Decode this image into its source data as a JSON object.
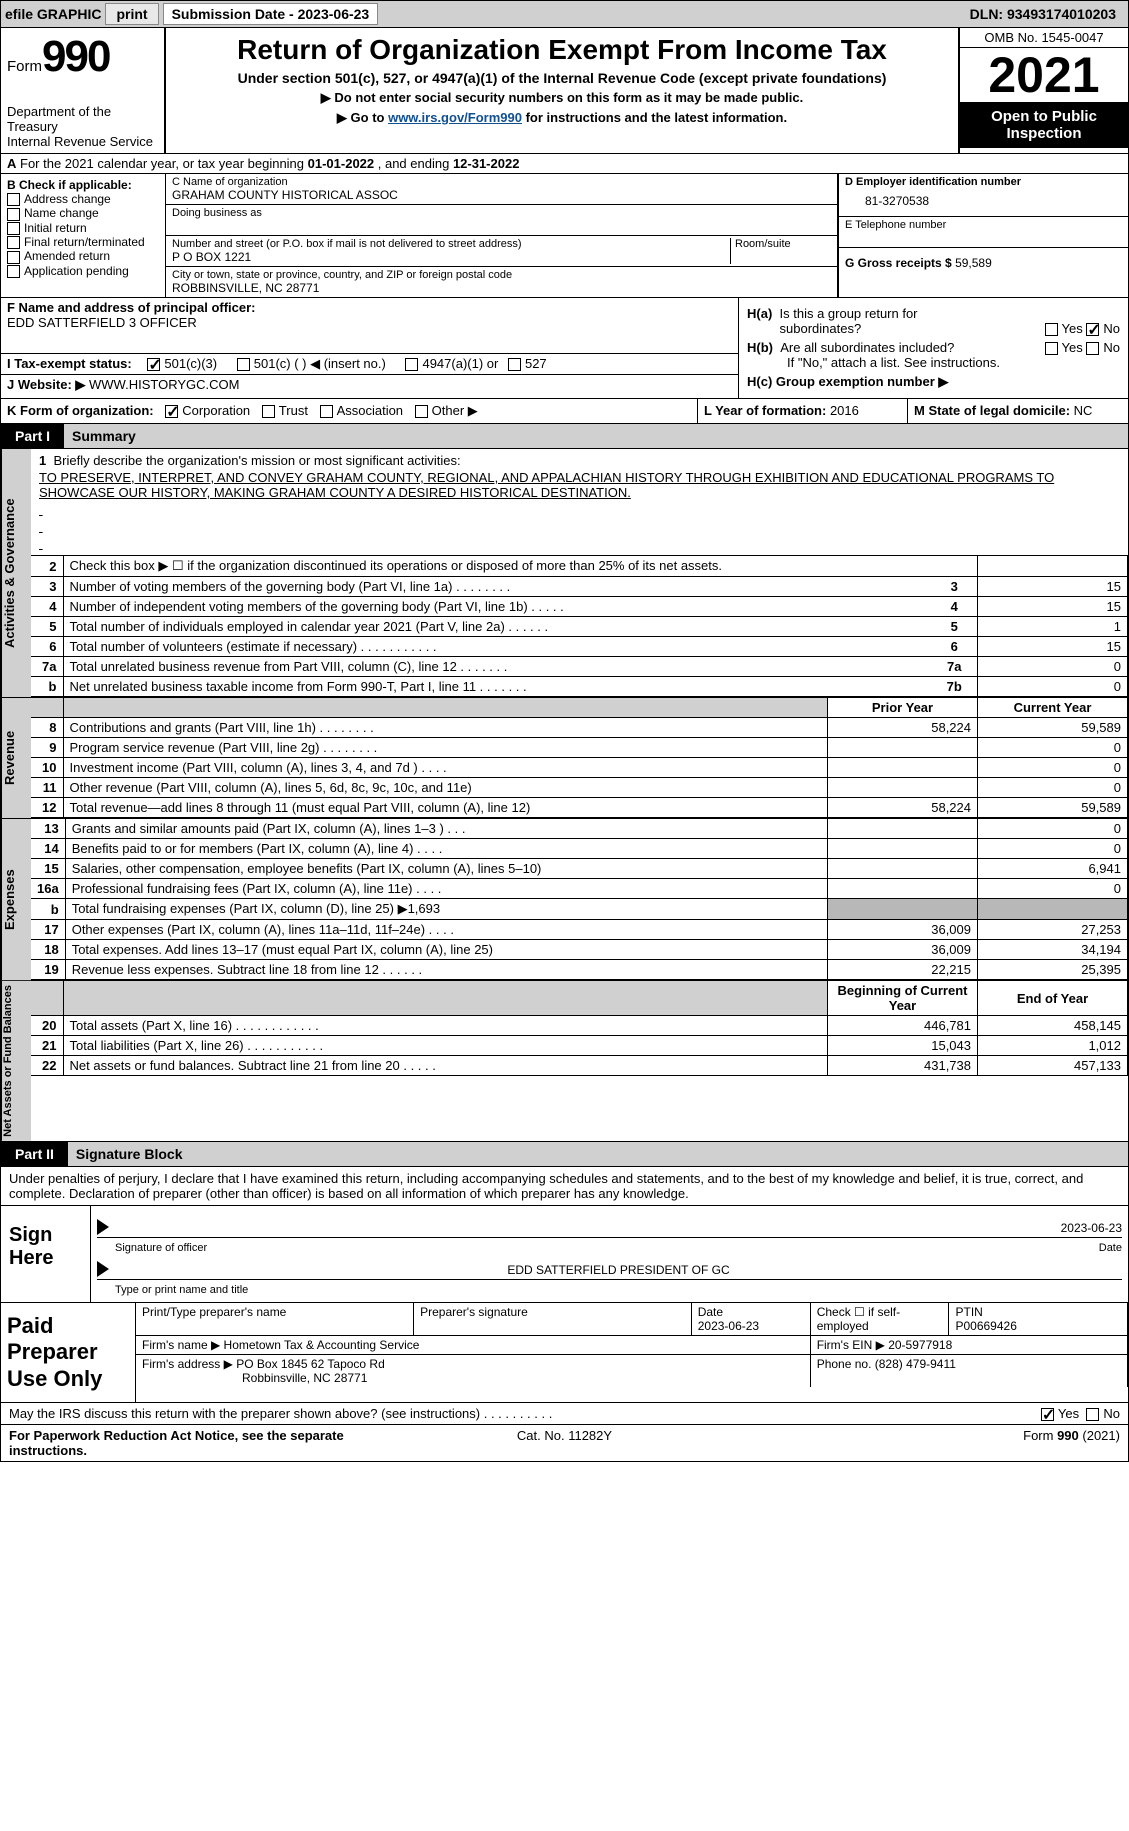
{
  "topbar": {
    "efile_label": "efile GRAPHIC",
    "print_btn": "print",
    "subdate_label": "Submission Date - ",
    "subdate_value": "2023-06-23",
    "dln_label": "DLN: ",
    "dln_value": "93493174010203"
  },
  "header": {
    "form_word": "Form",
    "form_num": "990",
    "dept": "Department of the Treasury",
    "irs": "Internal Revenue Service",
    "title": "Return of Organization Exempt From Income Tax",
    "sub": "Under section 501(c), 527, or 4947(a)(1) of the Internal Revenue Code (except private foundations)",
    "line1_pre": "▶ Do not enter social security numbers on this form as it may be made public.",
    "line2_pre": "▶ Go to ",
    "line2_link": "www.irs.gov/Form990",
    "line2_post": " for instructions and the latest information.",
    "omb": "OMB No. 1545-0047",
    "year": "2021",
    "open": "Open to Public Inspection"
  },
  "rowA": {
    "label_a": "A",
    "text1": " For the 2021 calendar year, or tax year beginning ",
    "begin": "01-01-2022",
    "text2": "   , and ending ",
    "end": "12-31-2022"
  },
  "colB": {
    "label": "B Check if applicable:",
    "items": [
      "Address change",
      "Name change",
      "Initial return",
      "Final return/terminated",
      "Amended return",
      "Application pending"
    ]
  },
  "colC": {
    "name_lbl": "C Name of organization",
    "name_val": "GRAHAM COUNTY HISTORICAL ASSOC",
    "dba_lbl": "Doing business as",
    "street_lbl": "Number and street (or P.O. box if mail is not delivered to street address)",
    "room_lbl": "Room/suite",
    "street_val": "P O BOX 1221",
    "city_lbl": "City or town, state or province, country, and ZIP or foreign postal code",
    "city_val": "ROBBINSVILLE, NC  28771"
  },
  "colD": {
    "ein_lbl": "D Employer identification number",
    "ein_val": "81-3270538",
    "tel_lbl": "E Telephone number",
    "gross_lbl": "G Gross receipts $ ",
    "gross_val": "59,589"
  },
  "secF": {
    "lbl": "F  Name and address of principal officer:",
    "val": "EDD SATTERFIELD 3 OFFICER"
  },
  "secH": {
    "ha_lbl": "H(a)  Is this a group return for subordinates?",
    "hb_lbl": "H(b)  Are all subordinates included?",
    "hb_note": "If \"No,\" attach a list. See instructions.",
    "hc_lbl": "H(c)  Group exemption number ▶",
    "yes": "Yes",
    "no": "No"
  },
  "secI": {
    "lbl": "I     Tax-exempt status:",
    "o1": "501(c)(3)",
    "o2": "501(c) (   ) ◀ (insert no.)",
    "o3": "4947(a)(1) or",
    "o4": "527"
  },
  "secJ": {
    "lbl": "J    Website: ▶ ",
    "val": "WWW.HISTORYGC.COM"
  },
  "rowK": {
    "lbl": "K Form of organization:",
    "corp": "Corporation",
    "trust": "Trust",
    "assoc": "Association",
    "other": "Other ▶",
    "l_lbl": "L Year of formation: ",
    "l_val": "2016",
    "m_lbl": "M State of legal domicile: ",
    "m_val": "NC"
  },
  "part1": {
    "tab": "Part I",
    "title": "Summary"
  },
  "mission": {
    "num": "1",
    "lbl": "Briefly describe the organization's mission or most significant activities:",
    "text": "TO PRESERVE, INTERPRET, AND CONVEY GRAHAM COUNTY, REGIONAL, AND APPALACHIAN HISTORY THROUGH EXHIBITION AND EDUCATIONAL PROGRAMS TO SHOWCASE OUR HISTORY, MAKING GRAHAM COUNTY A DESIRED HISTORICAL DESTINATION."
  },
  "vtabs": {
    "gov": "Activities & Governance",
    "rev": "Revenue",
    "exp": "Expenses",
    "net": "Net Assets or Fund Balances"
  },
  "gov_rows": [
    {
      "n": "2",
      "t": "Check this box ▶ ☐ if the organization discontinued its operations or disposed of more than 25% of its net assets.",
      "box": "",
      "v": ""
    },
    {
      "n": "3",
      "t": "Number of voting members of the governing body (Part VI, line 1a)   .    .    .    .    .    .    .    .",
      "box": "3",
      "v": "15"
    },
    {
      "n": "4",
      "t": "Number of independent voting members of the governing body (Part VI, line 1b)   .    .    .    .    .",
      "box": "4",
      "v": "15"
    },
    {
      "n": "5",
      "t": "Total number of individuals employed in calendar year 2021 (Part V, line 2a)   .    .    .    .    .    .",
      "box": "5",
      "v": "1"
    },
    {
      "n": "6",
      "t": "Total number of volunteers (estimate if necessary)    .    .    .    .    .    .    .    .    .    .    .",
      "box": "6",
      "v": "15"
    },
    {
      "n": "7a",
      "t": "Total unrelated business revenue from Part VIII, column (C), line 12   .    .    .    .    .    .    .",
      "box": "7a",
      "v": "0"
    },
    {
      "n": "b",
      "t": "Net unrelated business taxable income from Form 990-T, Part I, line 11   .    .    .    .    .    .    .",
      "box": "7b",
      "v": "0"
    }
  ],
  "two_col_hdr": {
    "py": "Prior Year",
    "cy": "Current Year",
    "boy": "Beginning of Current Year",
    "eoy": "End of Year"
  },
  "rev_rows": [
    {
      "n": "8",
      "t": "Contributions and grants (Part VIII, line 1h)   .    .    .    .    .    .    .    .",
      "py": "58,224",
      "cy": "59,589"
    },
    {
      "n": "9",
      "t": "Program service revenue (Part VIII, line 2g)   .    .    .    .    .    .    .    .",
      "py": "",
      "cy": "0"
    },
    {
      "n": "10",
      "t": "Investment income (Part VIII, column (A), lines 3, 4, and 7d )   .    .    .    .",
      "py": "",
      "cy": "0"
    },
    {
      "n": "11",
      "t": "Other revenue (Part VIII, column (A), lines 5, 6d, 8c, 9c, 10c, and 11e)",
      "py": "",
      "cy": "0"
    },
    {
      "n": "12",
      "t": "Total revenue—add lines 8 through 11 (must equal Part VIII, column (A), line 12)",
      "py": "58,224",
      "cy": "59,589"
    }
  ],
  "exp_rows": [
    {
      "n": "13",
      "t": "Grants and similar amounts paid (Part IX, column (A), lines 1–3 )   .    .    .",
      "py": "",
      "cy": "0"
    },
    {
      "n": "14",
      "t": "Benefits paid to or for members (Part IX, column (A), line 4)   .    .    .    .",
      "py": "",
      "cy": "0"
    },
    {
      "n": "15",
      "t": "Salaries, other compensation, employee benefits (Part IX, column (A), lines 5–10)",
      "py": "",
      "cy": "6,941"
    },
    {
      "n": "16a",
      "t": "Professional fundraising fees (Part IX, column (A), line 11e)   .    .    .    .",
      "py": "",
      "cy": "0"
    },
    {
      "n": "b",
      "t": "Total fundraising expenses (Part IX, column (D), line 25) ▶1,693",
      "py": "SHADE",
      "cy": "SHADE"
    },
    {
      "n": "17",
      "t": "Other expenses (Part IX, column (A), lines 11a–11d, 11f–24e)   .    .    .    .",
      "py": "36,009",
      "cy": "27,253"
    },
    {
      "n": "18",
      "t": "Total expenses. Add lines 13–17 (must equal Part IX, column (A), line 25)",
      "py": "36,009",
      "cy": "34,194"
    },
    {
      "n": "19",
      "t": "Revenue less expenses. Subtract line 18 from line 12   .    .    .    .    .    .",
      "py": "22,215",
      "cy": "25,395"
    }
  ],
  "net_rows": [
    {
      "n": "20",
      "t": "Total assets (Part X, line 16)   .    .    .    .    .    .    .    .    .    .    .    .",
      "py": "446,781",
      "cy": "458,145"
    },
    {
      "n": "21",
      "t": "Total liabilities (Part X, line 26)   .    .    .    .    .    .    .    .    .    .    .",
      "py": "15,043",
      "cy": "1,012"
    },
    {
      "n": "22",
      "t": "Net assets or fund balances. Subtract line 21 from line 20   .    .    .    .    .",
      "py": "431,738",
      "cy": "457,133"
    }
  ],
  "part2": {
    "tab": "Part II",
    "title": "Signature Block"
  },
  "sig_decl": "Under penalties of perjury, I declare that I have examined this return, including accompanying schedules and statements, and to the best of my knowledge and belief, it is true, correct, and complete. Declaration of preparer (other than officer) is based on all information of which preparer has any knowledge.",
  "sign": {
    "lbl": "Sign Here",
    "date": "2023-06-23",
    "sig_of": "Signature of officer",
    "date_lbl": "Date",
    "name": "EDD SATTERFIELD  PRESIDENT OF GC",
    "name_lbl": "Type or print name and title"
  },
  "paid": {
    "lbl": "Paid Preparer Use Only",
    "c1": "Print/Type preparer's name",
    "c2": "Preparer's signature",
    "c3_lbl": "Date",
    "c3_val": "2023-06-23",
    "c4": "Check ☐ if self-employed",
    "c5_lbl": "PTIN",
    "c5_val": "P00669426",
    "firm_lbl": "Firm's name     ▶ ",
    "firm_val": "Hometown Tax & Accounting Service",
    "ein_lbl": "Firm's EIN ▶ ",
    "ein_val": "20-5977918",
    "addr_lbl": "Firm's address ▶",
    "addr_val": "PO Box 1845 62 Tapoco Rd",
    "addr2": "Robbinsville, NC  28771",
    "phone_lbl": "Phone no. ",
    "phone_val": "(828) 479-9411"
  },
  "may": {
    "text": "May the IRS discuss this return with the preparer shown above? (see instructions)   .    .    .    .    .    .    .    .    .    .",
    "yes": "Yes",
    "no": "No"
  },
  "footer": {
    "l": "For Paperwork Reduction Act Notice, see the separate instructions.",
    "c": "Cat. No. 11282Y",
    "r": "Form 990 (2021)"
  }
}
